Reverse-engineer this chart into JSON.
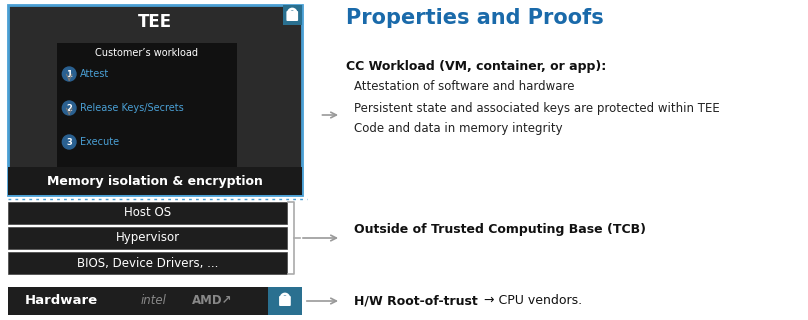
{
  "bg_color": "#ffffff",
  "tee_border_color": "#4a9fd4",
  "tee_bg": "#2b2b2b",
  "workload_bg": "#111111",
  "mem_bar_bg": "#1a1a1a",
  "row_bg": "#1e1e1e",
  "hardware_teal": "#2a7090",
  "title_color": "#1a6aaa",
  "title_text": "Properties and Proofs",
  "tee_label": "TEE",
  "workload_label": "Customer’s workload",
  "step1": "Attest",
  "step2": "Release Keys/Secrets",
  "step3": "Execute",
  "step_color": "#4a9fd4",
  "step_num_bg": "#2a6090",
  "memory_label": "Memory isolation & encryption",
  "rows": [
    "Host OS",
    "Hypervisor",
    "BIOS, Device Drivers, ..."
  ],
  "hardware_label": "Hardware",
  "intel_text": "intel",
  "amd_text": "AMD↗",
  "cc_workload_bold": "CC Workload (VM, container, or app):",
  "bullet1": "Attestation of software and hardware",
  "bullet2": "Persistent state and associated keys are protected within TEE",
  "bullet3": "Code and data in memory integrity",
  "tcb_label": "Outside of Trusted Computing Base (TCB)",
  "hw_root": "H/W Root-of-trust",
  "hw_arrow": " → ",
  "cpu_vendors": "CPU vendors.",
  "arrow_color": "#999999",
  "dotted_line_color": "#4a9fd4"
}
